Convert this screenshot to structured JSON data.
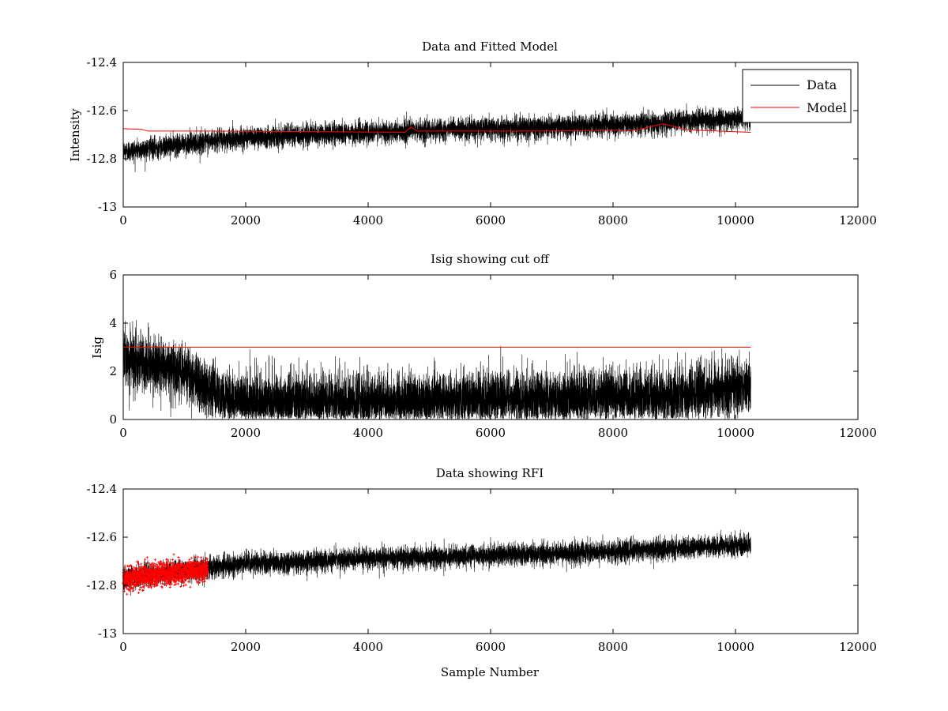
{
  "figure": {
    "background": "#ffffff"
  },
  "colors": {
    "data": "#000000",
    "model": "#ff0000",
    "rfi": "#ff0000",
    "axis": "#000000"
  },
  "chart_data": [
    {
      "id": "p1",
      "type": "line",
      "title": "Data and Fitted Model",
      "xlabel": "",
      "ylabel": "Intensity",
      "xlim": [
        0,
        12000
      ],
      "ylim": [
        -13,
        -12.4
      ],
      "xticks": [
        0,
        2000,
        4000,
        6000,
        8000,
        10000,
        12000
      ],
      "xtick_labels": [
        "0",
        "2000",
        "4000",
        "6000",
        "8000",
        "10000",
        "12000"
      ],
      "yticks": [
        -13,
        -12.8,
        -12.6,
        -12.4
      ],
      "ytick_labels": [
        "-13",
        "-12.8",
        "-12.6",
        "-12.4"
      ],
      "legend": {
        "position": "top-right",
        "entries": [
          "Data",
          "Model"
        ]
      },
      "series": [
        {
          "name": "Data",
          "color": "#000000",
          "kind": "noisy",
          "x": [
            0,
            1300,
            2000,
            4000,
            6000,
            8000,
            10250
          ],
          "trend": [
            -12.77,
            -12.73,
            -12.71,
            -12.69,
            -12.675,
            -12.66,
            -12.63
          ],
          "spread": 0.05,
          "n_samples": 10250
        },
        {
          "name": "Model",
          "color": "#ff0000",
          "kind": "line",
          "x": [
            0,
            300,
            400,
            1400,
            4600,
            4700,
            4800,
            7000,
            8400,
            8800,
            8900,
            9200,
            10250
          ],
          "y": [
            -12.675,
            -12.678,
            -12.685,
            -12.685,
            -12.69,
            -12.668,
            -12.685,
            -12.685,
            -12.68,
            -12.655,
            -12.66,
            -12.68,
            -12.69
          ]
        }
      ]
    },
    {
      "id": "p2",
      "type": "line",
      "title": "Isig showing cut off",
      "xlabel": "",
      "ylabel": "Isig",
      "xlim": [
        0,
        12000
      ],
      "ylim": [
        0,
        6
      ],
      "xticks": [
        0,
        2000,
        4000,
        6000,
        8000,
        10000,
        12000
      ],
      "xtick_labels": [
        "0",
        "2000",
        "4000",
        "6000",
        "8000",
        "10000",
        "12000"
      ],
      "yticks": [
        0,
        2,
        4,
        6
      ],
      "ytick_labels": [
        "0",
        "2",
        "4",
        "6"
      ],
      "series": [
        {
          "name": "Isig",
          "color": "#000000",
          "kind": "noisy-positive",
          "x": [
            0,
            1000,
            1400,
            2000,
            6000,
            9000,
            10250
          ],
          "trend": [
            2.5,
            2.0,
            1.2,
            0.7,
            0.8,
            1.0,
            1.4
          ],
          "spread": 1.3,
          "n_samples": 10250
        },
        {
          "name": "Cut off",
          "color": "#ff0000",
          "kind": "line",
          "x": [
            0,
            10250
          ],
          "y": [
            3,
            3
          ]
        }
      ]
    },
    {
      "id": "p3",
      "type": "scatter",
      "title": "Data showing RFI",
      "xlabel": "Sample Number",
      "ylabel": "",
      "xlim": [
        0,
        12000
      ],
      "ylim": [
        -13,
        -12.4
      ],
      "xticks": [
        0,
        2000,
        4000,
        6000,
        8000,
        10000,
        12000
      ],
      "xtick_labels": [
        "0",
        "2000",
        "4000",
        "6000",
        "8000",
        "10000",
        "12000"
      ],
      "yticks": [
        -13,
        -12.8,
        -12.6,
        -12.4
      ],
      "ytick_labels": [
        "-13",
        "-12.8",
        "-12.6",
        "-12.4"
      ],
      "series": [
        {
          "name": "Data",
          "color": "#000000",
          "kind": "noisy",
          "x": [
            0,
            1300,
            2000,
            4000,
            6000,
            8000,
            10250
          ],
          "trend": [
            -12.77,
            -12.73,
            -12.71,
            -12.69,
            -12.675,
            -12.66,
            -12.63
          ],
          "spread": 0.05,
          "n_samples": 10250
        },
        {
          "name": "RFI",
          "color": "#ff0000",
          "kind": "markers",
          "x_range": [
            0,
            1380
          ],
          "trend": [
            -12.77,
            -12.735
          ],
          "spread": 0.05
        }
      ]
    }
  ]
}
